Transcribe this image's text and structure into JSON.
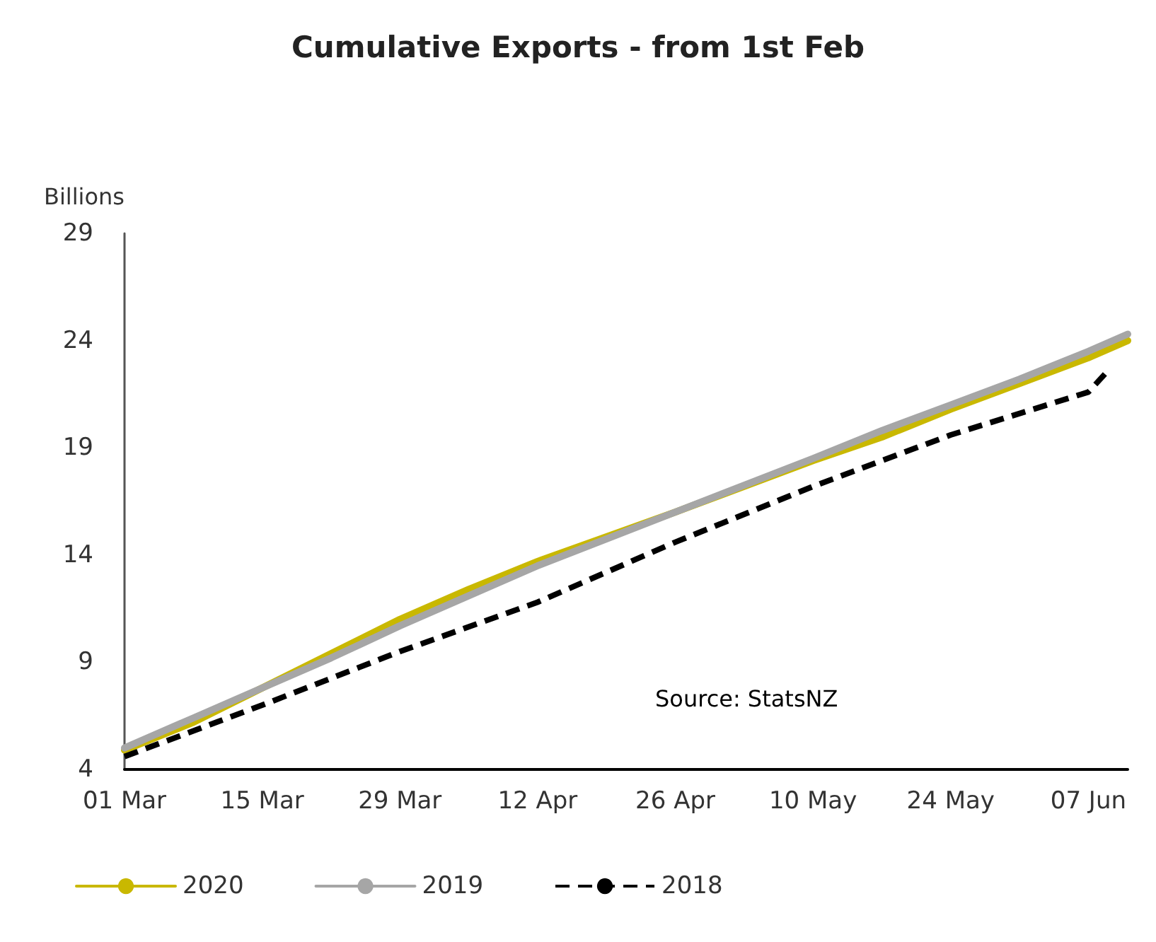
{
  "chart_data": {
    "type": "line",
    "title": "Cumulative Exports - from 1st Feb",
    "ylabel": "Billions",
    "x": [
      "--03-01",
      "--03-08",
      "--03-15",
      "--03-22",
      "--03-29",
      "--04-05",
      "--04-12",
      "--04-26",
      "--05-10",
      "--05-17",
      "--05-24",
      "--05-31",
      "--06-07",
      "--06-11"
    ],
    "series": [
      {
        "name": "2020",
        "color": "#c9b800",
        "line_style": "solid",
        "values": [
          4.9,
          6.2,
          7.8,
          9.4,
          11.0,
          12.4,
          13.7,
          16.0,
          18.4,
          19.5,
          20.8,
          22.0,
          23.2,
          24.0
        ]
      },
      {
        "name": "2019",
        "color": "#a6a6a6",
        "line_style": "solid",
        "values": [
          5.0,
          6.4,
          7.8,
          9.2,
          10.7,
          12.1,
          13.5,
          16.0,
          18.5,
          19.8,
          21.0,
          22.2,
          23.5,
          24.3
        ]
      },
      {
        "name": "2018",
        "color": "#000000",
        "line_style": "dashed",
        "x": [
          "--03-01",
          "--03-08",
          "--03-15",
          "--03-29",
          "--04-12",
          "--04-26",
          "--05-10",
          "--05-24",
          "--06-07",
          "--06-09"
        ],
        "values": [
          4.6,
          5.8,
          7.0,
          9.5,
          11.8,
          14.6,
          17.2,
          19.6,
          21.6,
          22.6
        ]
      }
    ],
    "xlim": [
      "--03-01",
      "--06-11"
    ],
    "xticks": [
      {
        "value": "--03-01",
        "label": "01 Mar"
      },
      {
        "value": "--03-15",
        "label": "15 Mar"
      },
      {
        "value": "--03-29",
        "label": "29 Mar"
      },
      {
        "value": "--04-12",
        "label": "12 Apr"
      },
      {
        "value": "--04-26",
        "label": "26 Apr"
      },
      {
        "value": "--05-10",
        "label": "10 May"
      },
      {
        "value": "--05-24",
        "label": "24 May"
      },
      {
        "value": "--06-07",
        "label": "07 Jun"
      }
    ],
    "ylim": [
      4,
      29
    ],
    "yticks": [
      4,
      9,
      14,
      19,
      24,
      29
    ],
    "grid": false,
    "legend": "bottom",
    "marker": "none",
    "annotations": [
      "Source: StatsNZ"
    ]
  }
}
